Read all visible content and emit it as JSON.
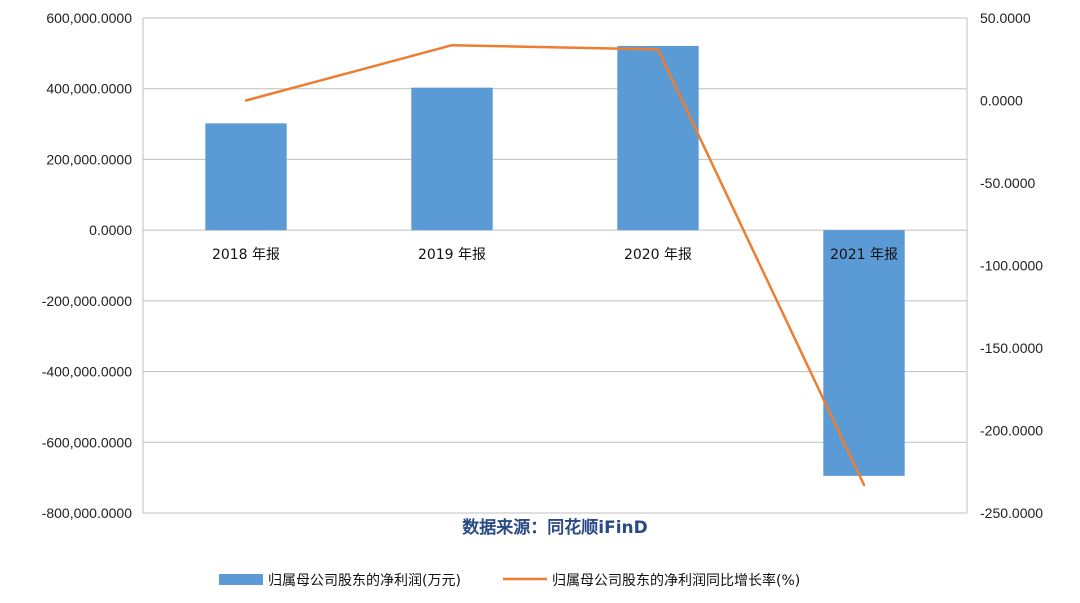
{
  "chart_data": {
    "type": "bar",
    "categories": [
      "2018 年报",
      "2019 年报",
      "2020 年报",
      "2021 年报"
    ],
    "series": [
      {
        "name": "归属母公司股东的净利润(万元)",
        "type": "bar",
        "axis": "left",
        "color": "#5b9bd5",
        "values": [
          302000,
          403000,
          521000,
          -695000
        ]
      },
      {
        "name": "归属母公司股东的净利润同比增长率(%)",
        "type": "line",
        "axis": "right",
        "color": "#ed7d31",
        "values": [
          0.0,
          33.5,
          31.0,
          -233.0
        ]
      }
    ],
    "y_left": {
      "lim": [
        -800000,
        600000
      ],
      "ticks": [
        "600,000.0000",
        "400,000.0000",
        "200,000.0000",
        "0.0000",
        "-200,000.0000",
        "-400,000.0000",
        "-600,000.0000",
        "-800,000.0000"
      ]
    },
    "y_right": {
      "lim": [
        -250,
        50
      ],
      "ticks": [
        "50.0000",
        "0.0000",
        "-50.0000",
        "-100.0000",
        "-150.0000",
        "-200.0000",
        "-250.0000"
      ]
    },
    "grid": true,
    "legend_position": "bottom",
    "source_note": "数据来源：同花顺iFinD"
  }
}
